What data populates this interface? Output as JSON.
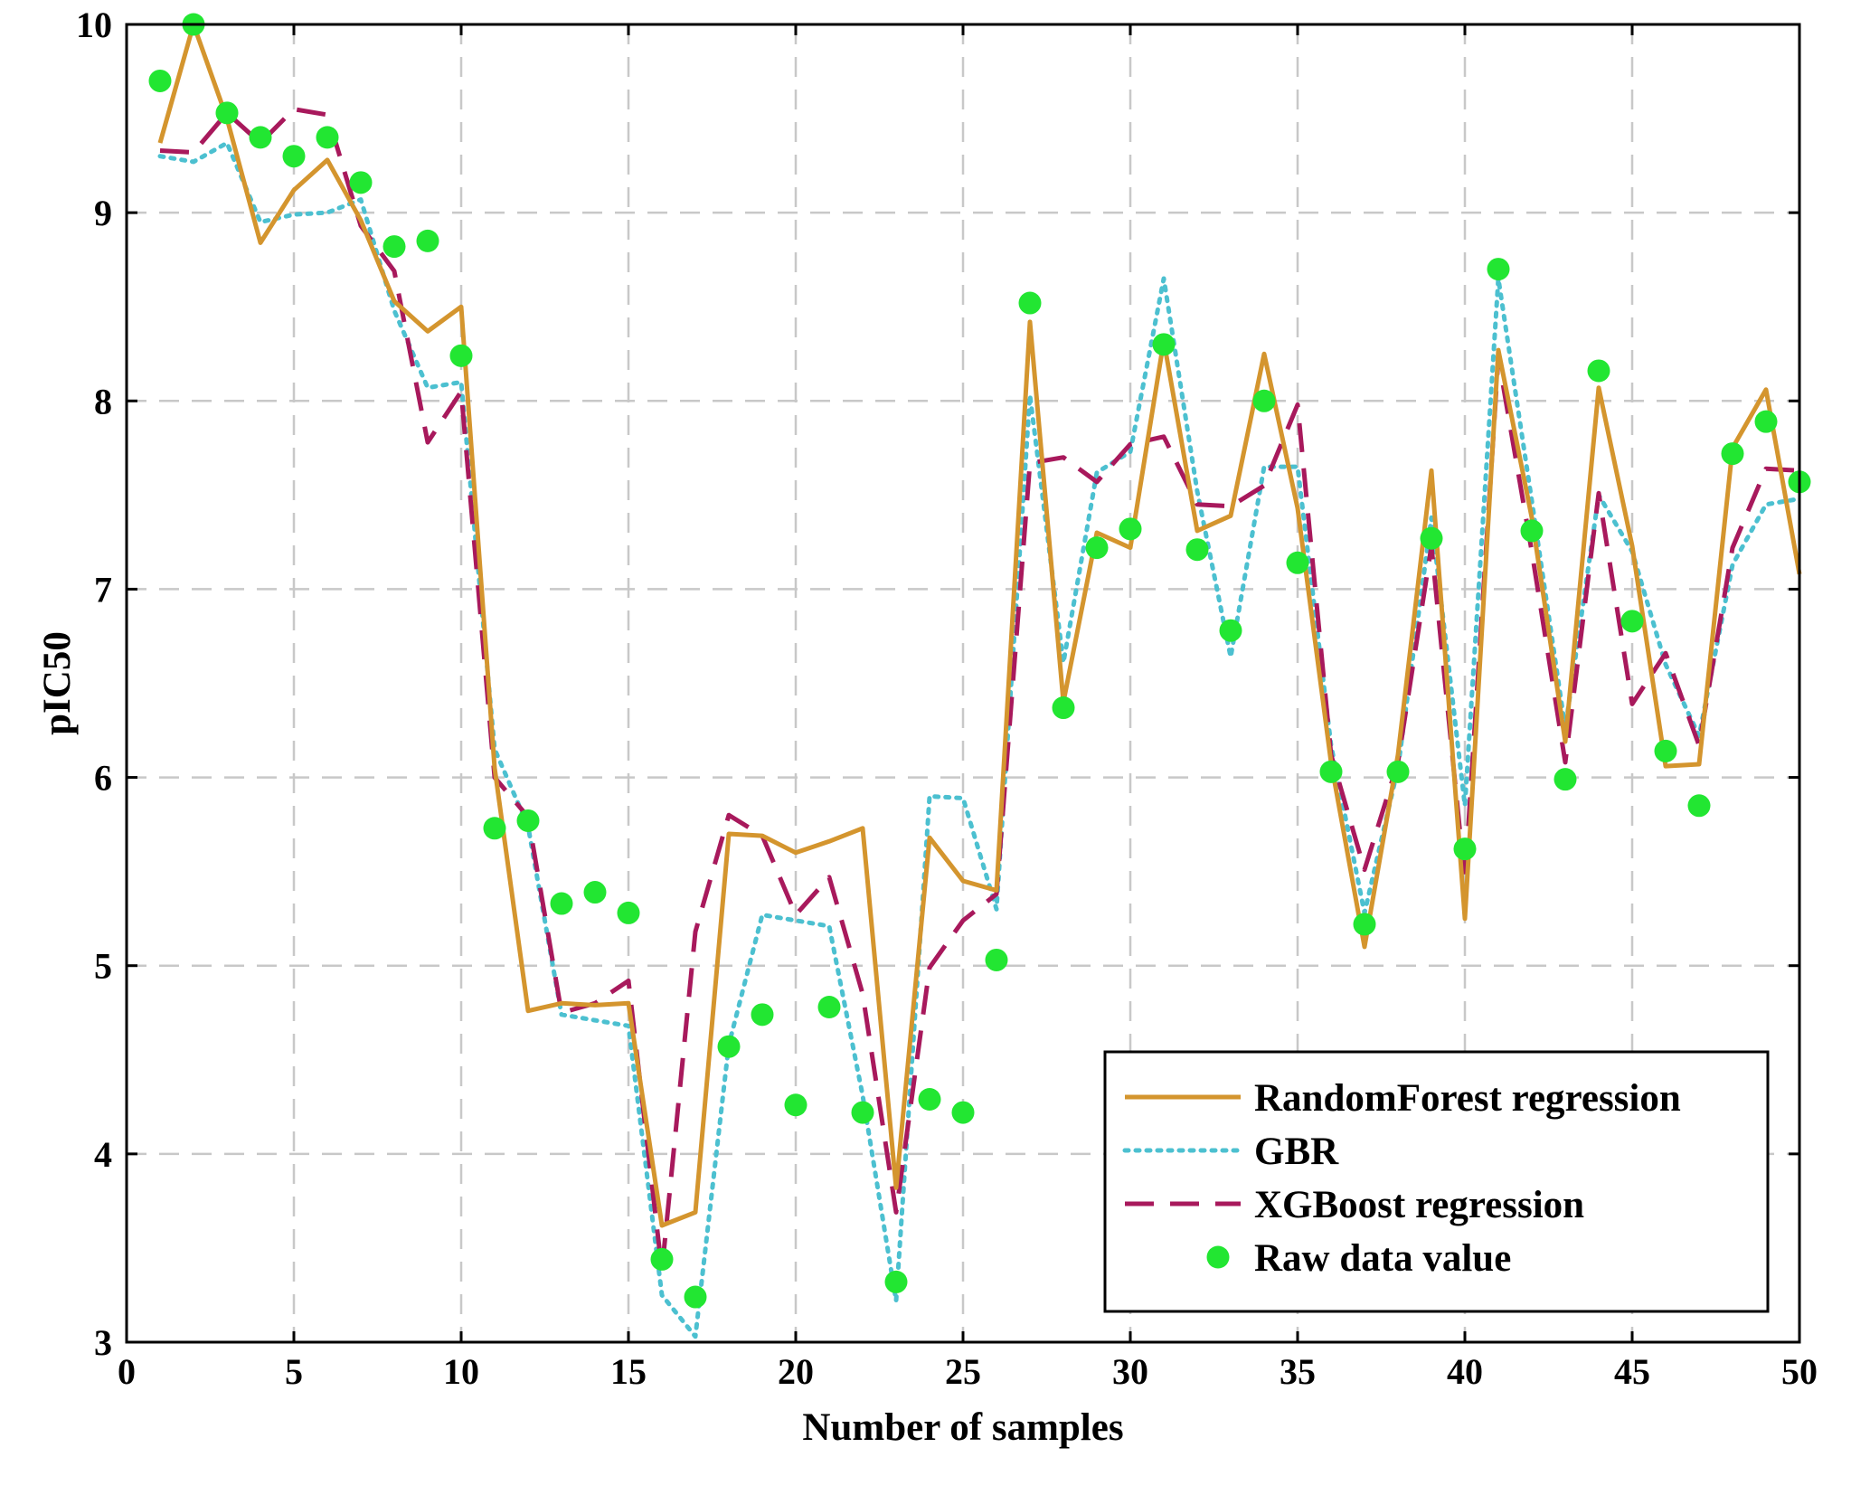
{
  "chart_data": {
    "type": "line",
    "xlabel": "Number of samples",
    "ylabel": "pIC50",
    "xlim": [
      0,
      50
    ],
    "ylim": [
      3,
      10
    ],
    "xticks": [
      0,
      5,
      10,
      15,
      20,
      25,
      30,
      35,
      40,
      45,
      50
    ],
    "yticks": [
      3,
      4,
      5,
      6,
      7,
      8,
      9,
      10
    ],
    "grid": true,
    "legend_position": "bottom-right",
    "x": [
      1,
      2,
      3,
      4,
      5,
      6,
      7,
      8,
      9,
      10,
      11,
      12,
      13,
      14,
      15,
      16,
      17,
      18,
      19,
      20,
      21,
      22,
      23,
      24,
      25,
      26,
      27,
      28,
      29,
      30,
      31,
      32,
      33,
      34,
      35,
      36,
      37,
      38,
      39,
      40,
      41,
      42,
      43,
      44,
      45,
      46,
      47,
      48,
      49,
      50
    ],
    "series": [
      {
        "name": "RandomForest regression",
        "style": "solid",
        "color": "#d4952e",
        "values": [
          9.37,
          10.0,
          9.5,
          8.84,
          9.12,
          9.28,
          8.96,
          8.53,
          8.37,
          8.5,
          6.05,
          4.76,
          4.8,
          4.79,
          4.8,
          3.62,
          3.69,
          5.7,
          5.69,
          5.6,
          5.66,
          5.73,
          3.82,
          5.68,
          5.45,
          5.4,
          8.42,
          6.4,
          7.3,
          7.22,
          8.32,
          7.31,
          7.39,
          8.25,
          7.43,
          6.08,
          5.1,
          6.12,
          7.63,
          5.25,
          8.27,
          7.38,
          6.19,
          8.07,
          7.23,
          6.06,
          6.07,
          7.75,
          8.06,
          7.08
        ]
      },
      {
        "name": "GBR",
        "style": "dotted",
        "color": "#4cc0d0",
        "values": [
          9.3,
          9.27,
          9.37,
          8.95,
          8.99,
          9.0,
          9.07,
          8.48,
          8.07,
          8.1,
          6.15,
          5.74,
          4.74,
          4.71,
          4.68,
          3.25,
          3.03,
          4.58,
          5.27,
          5.24,
          5.21,
          4.31,
          3.22,
          5.9,
          5.89,
          5.3,
          8.03,
          6.61,
          7.62,
          7.73,
          8.65,
          7.52,
          6.64,
          7.65,
          7.65,
          6.17,
          5.28,
          6.05,
          7.38,
          5.85,
          8.65,
          7.47,
          6.26,
          7.5,
          7.2,
          6.6,
          6.22,
          7.13,
          7.45,
          7.48
        ]
      },
      {
        "name": "XGBoost regression",
        "style": "dashed",
        "color": "#a8195c",
        "values": [
          9.33,
          9.32,
          9.53,
          9.37,
          9.55,
          9.52,
          8.93,
          8.69,
          7.78,
          8.05,
          6.0,
          5.79,
          4.75,
          4.8,
          4.92,
          3.38,
          5.18,
          5.8,
          5.69,
          5.27,
          5.47,
          4.85,
          3.69,
          4.99,
          5.24,
          5.38,
          7.67,
          7.7,
          7.57,
          7.77,
          7.81,
          7.45,
          7.44,
          7.55,
          7.98,
          6.12,
          5.51,
          6.08,
          7.23,
          5.45,
          8.23,
          7.2,
          6.08,
          7.51,
          6.39,
          6.66,
          6.17,
          7.22,
          7.64,
          7.63
        ]
      },
      {
        "name": "Raw data value",
        "style": "markers",
        "color": "#22e632",
        "values": [
          9.7,
          10.0,
          9.53,
          9.4,
          9.3,
          9.4,
          9.16,
          8.82,
          8.85,
          8.24,
          5.73,
          5.77,
          5.33,
          5.39,
          5.28,
          3.44,
          3.24,
          4.57,
          4.74,
          4.26,
          4.78,
          4.22,
          3.32,
          4.29,
          4.22,
          5.03,
          8.52,
          6.37,
          7.22,
          7.32,
          8.3,
          7.21,
          6.78,
          8.0,
          7.14,
          6.03,
          5.22,
          6.03,
          7.27,
          5.62,
          8.7,
          7.31,
          5.99,
          8.16,
          6.83,
          6.14,
          5.85,
          7.72,
          7.89,
          7.57
        ]
      }
    ]
  }
}
